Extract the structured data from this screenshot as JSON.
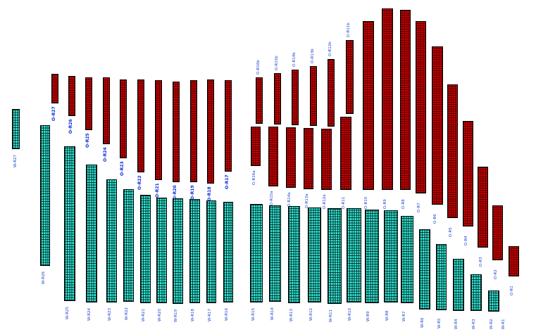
{
  "diagram": {
    "colors": {
      "north_rows": "#e80000",
      "south_rows": "#2ee8d6",
      "label": "#1a3fd0"
    },
    "north_bold_labels": [
      "O-R27",
      "O-R26",
      "O-R25",
      "O-R24",
      "O-R23",
      "O-R22",
      "O-R21",
      "O-R20",
      "O-R19",
      "O-R18",
      "O-R17"
    ],
    "north_top_labels": [
      "O-R16b",
      "O-R15b",
      "O-R14b",
      "O-R13b",
      "O-R12b",
      "O-R11b"
    ],
    "north_lower_labels": [
      "O-R16a",
      "O-R15a",
      "O-R14a",
      "O-R13a",
      "O-R12a",
      "O-R11",
      "O-R10",
      "O-R9",
      "O-R8",
      "O-R7",
      "O-R6",
      "O-R5",
      "O-R4",
      "O-R3",
      "O-R2",
      "O-R1"
    ],
    "south_labels": [
      "W-R27",
      "W-R26",
      "W-R25",
      "W-R24",
      "W-R23",
      "W-R22",
      "W-R21",
      "W-R20",
      "W-R19",
      "W-R18",
      "W-R17",
      "W-R16",
      "W-R15",
      "W-R14",
      "W-R13",
      "W-R12",
      "W-R11",
      "W-R10",
      "W-R9",
      "W-R8",
      "W-R7",
      "W-R6",
      "W-R5",
      "W-R4",
      "W-R3",
      "W-R2",
      "W-R1"
    ]
  }
}
